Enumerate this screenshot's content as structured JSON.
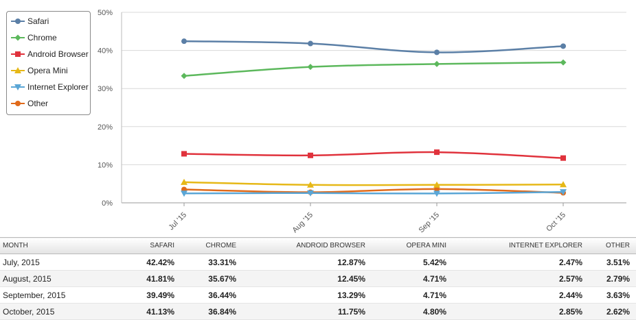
{
  "chart_data": {
    "type": "line",
    "title": "",
    "xlabel": "",
    "ylabel": "",
    "categories": [
      "Jul '15",
      "Aug '15",
      "Sep '15",
      "Oct '15"
    ],
    "ylim": [
      0,
      50
    ],
    "yticks": [
      "0%",
      "10%",
      "20%",
      "30%",
      "40%",
      "50%"
    ],
    "grid": true,
    "legend_position": "top-left",
    "series": [
      {
        "name": "Safari",
        "color": "#5b7fa6",
        "marker": "circle",
        "values": [
          42.42,
          41.81,
          39.49,
          41.13
        ]
      },
      {
        "name": "Chrome",
        "color": "#5cb85c",
        "marker": "diamond",
        "values": [
          33.31,
          35.67,
          36.44,
          36.84
        ]
      },
      {
        "name": "Android Browser",
        "color": "#e0323c",
        "marker": "square",
        "values": [
          12.87,
          12.45,
          13.29,
          11.75
        ]
      },
      {
        "name": "Opera Mini",
        "color": "#e6b817",
        "marker": "triangle-up",
        "values": [
          5.42,
          4.71,
          4.71,
          4.8
        ]
      },
      {
        "name": "Internet Explorer",
        "color": "#5aa6d6",
        "marker": "triangle-down",
        "values": [
          2.47,
          2.57,
          2.44,
          2.85
        ]
      },
      {
        "name": "Other",
        "color": "#e06a1a",
        "marker": "circle",
        "values": [
          3.51,
          2.79,
          3.63,
          2.62
        ]
      }
    ]
  },
  "table": {
    "headers": [
      "MONTH",
      "SAFARI",
      "CHROME",
      "ANDROID BROWSER",
      "OPERA MINI",
      "INTERNET EXPLORER",
      "OTHER"
    ],
    "rows": [
      [
        "July, 2015",
        "42.42%",
        "33.31%",
        "12.87%",
        "5.42%",
        "2.47%",
        "3.51%"
      ],
      [
        "August, 2015",
        "41.81%",
        "35.67%",
        "12.45%",
        "4.71%",
        "2.57%",
        "2.79%"
      ],
      [
        "September, 2015",
        "39.49%",
        "36.44%",
        "13.29%",
        "4.71%",
        "2.44%",
        "3.63%"
      ],
      [
        "October, 2015",
        "41.13%",
        "36.84%",
        "11.75%",
        "4.80%",
        "2.85%",
        "2.62%"
      ]
    ]
  }
}
